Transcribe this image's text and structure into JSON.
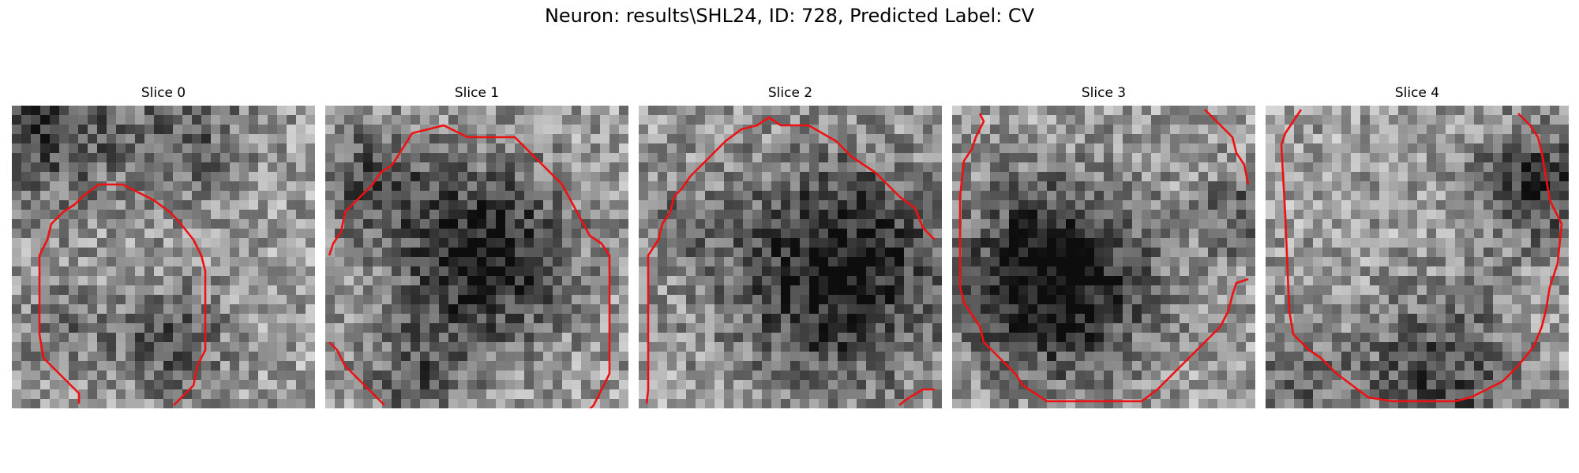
{
  "figure": {
    "suptitle": "Neuron: results\\SHL24, ID: 728, Predicted Label: CV",
    "contour_color": "#ee1111"
  },
  "slices": [
    {
      "title": "Slice 0"
    },
    {
      "title": "Slice 1"
    },
    {
      "title": "Slice 2"
    },
    {
      "title": "Slice 3"
    },
    {
      "title": "Slice 4"
    }
  ]
}
